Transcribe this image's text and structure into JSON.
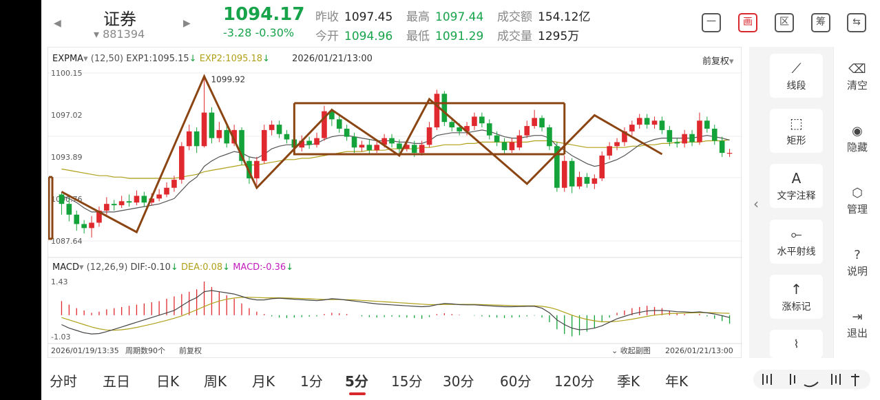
{
  "header": {
    "name": "证券",
    "code": "881394",
    "price": "1094.17",
    "change": "-3.28  -0.30%",
    "quotes": [
      {
        "label": "昨收",
        "value": "1097.45",
        "tone": "normal"
      },
      {
        "label": "今开",
        "value": "1094.96",
        "tone": "green"
      },
      {
        "label": "最高",
        "value": "1097.44",
        "tone": "green"
      },
      {
        "label": "最低",
        "value": "1091.29",
        "tone": "green"
      },
      {
        "label": "成交额",
        "value": "154.12亿",
        "tone": "normal"
      },
      {
        "label": "成交量",
        "value": "1295万",
        "tone": "normal"
      }
    ],
    "buttons": [
      {
        "label": "一",
        "name": "minimize-view-button"
      },
      {
        "label": "画",
        "name": "draw-button"
      },
      {
        "label": "区",
        "name": "range-button"
      },
      {
        "label": "筹",
        "name": "chips-button"
      },
      {
        "label": "⇆",
        "name": "switch-device-button"
      }
    ]
  },
  "chart": {
    "main_indicator": {
      "name": "EXPMA",
      "params": "(12,50)",
      "exp1": "EXP1:1095.15",
      "exp2": "EXP2:1095.18",
      "time": "2026/01/21/13:00"
    },
    "adjust_label": "前复权",
    "y_labels": [
      "1100.15",
      "1097.02",
      "1093.89",
      "1090.76",
      "1087.64"
    ],
    "max_marker": "1099.92",
    "sub_indicator": {
      "name": "MACD",
      "params": "(12,26,9)",
      "dif": "DIF:-0.10",
      "dea": "DEA:0.08",
      "macd": "MACD:-0.36"
    },
    "macd_labels": [
      "1.43",
      "-1.03"
    ],
    "footer": {
      "start_time": "2026/01/19/13:35",
      "period_count": "周期数90个",
      "adjust": "前复权",
      "collapse": "收起副图",
      "end_time": "2026/01/21/13:00"
    },
    "colors": {
      "up": "#e0292e",
      "down": "#14a33a",
      "exp1": "#555555",
      "exp2": "#b0a018",
      "draw": "#8b4513"
    }
  },
  "chart_data": {
    "type": "candlestick",
    "title": "",
    "candles": [
      [
        1091.1,
        1090.4,
        1091.3,
        1089.6
      ],
      [
        1090.4,
        1089.6,
        1090.8,
        1089.1
      ],
      [
        1089.6,
        1088.9,
        1089.9,
        1088.4
      ],
      [
        1088.9,
        1088.6,
        1089.2,
        1088.2
      ],
      [
        1088.6,
        1089.0,
        1089.5,
        1087.9
      ],
      [
        1089.0,
        1089.9,
        1090.2,
        1088.7
      ],
      [
        1089.9,
        1090.4,
        1090.9,
        1089.6
      ],
      [
        1090.4,
        1090.3,
        1090.7,
        1089.9
      ],
      [
        1090.3,
        1090.6,
        1091.0,
        1090.1
      ],
      [
        1090.6,
        1090.5,
        1091.1,
        1090.2
      ],
      [
        1090.5,
        1091.0,
        1091.4,
        1090.3
      ],
      [
        1091.0,
        1090.5,
        1091.3,
        1090.2
      ],
      [
        1090.5,
        1090.8,
        1091.2,
        1090.3
      ],
      [
        1090.8,
        1091.1,
        1091.5,
        1090.6
      ],
      [
        1091.1,
        1091.6,
        1092.0,
        1090.9
      ],
      [
        1091.6,
        1092.2,
        1092.5,
        1091.3
      ],
      [
        1092.2,
        1094.7,
        1095.0,
        1091.9
      ],
      [
        1094.7,
        1095.8,
        1096.3,
        1094.4
      ],
      [
        1095.8,
        1094.7,
        1096.1,
        1094.2
      ],
      [
        1094.7,
        1097.2,
        1099.9,
        1094.6
      ],
      [
        1097.2,
        1095.3,
        1097.6,
        1094.9
      ],
      [
        1095.3,
        1095.9,
        1096.5,
        1095.0
      ],
      [
        1095.9,
        1094.9,
        1096.3,
        1094.6
      ],
      [
        1094.9,
        1095.9,
        1096.3,
        1094.7
      ],
      [
        1095.9,
        1093.6,
        1096.1,
        1093.3
      ],
      [
        1093.6,
        1092.3,
        1093.9,
        1091.9
      ],
      [
        1092.3,
        1093.6,
        1093.9,
        1091.8
      ],
      [
        1093.6,
        1095.9,
        1096.3,
        1093.4
      ],
      [
        1095.9,
        1096.3,
        1096.6,
        1095.5
      ],
      [
        1096.3,
        1095.6,
        1096.6,
        1095.3
      ],
      [
        1095.6,
        1095.2,
        1095.9,
        1094.9
      ],
      [
        1095.2,
        1094.6,
        1095.5,
        1094.2
      ],
      [
        1094.6,
        1095.1,
        1095.5,
        1094.3
      ],
      [
        1095.1,
        1094.8,
        1095.4,
        1094.5
      ],
      [
        1094.8,
        1095.3,
        1095.7,
        1094.6
      ],
      [
        1095.3,
        1097.3,
        1097.7,
        1095.1
      ],
      [
        1097.3,
        1096.7,
        1097.5,
        1096.2
      ],
      [
        1096.7,
        1096.0,
        1097.0,
        1095.7
      ],
      [
        1096.0,
        1095.4,
        1096.3,
        1095.1
      ],
      [
        1095.4,
        1094.6,
        1095.7,
        1094.2
      ],
      [
        1094.6,
        1094.8,
        1095.1,
        1094.3
      ],
      [
        1094.8,
        1094.4,
        1095.2,
        1094.1
      ],
      [
        1094.4,
        1094.8,
        1095.1,
        1094.2
      ],
      [
        1094.8,
        1095.3,
        1095.6,
        1094.6
      ],
      [
        1095.3,
        1094.9,
        1095.6,
        1094.6
      ],
      [
        1094.9,
        1094.5,
        1095.2,
        1094.2
      ],
      [
        1094.5,
        1094.8,
        1095.1,
        1094.3
      ],
      [
        1094.8,
        1094.2,
        1095.1,
        1093.9
      ],
      [
        1094.2,
        1094.8,
        1095.1,
        1094.0
      ],
      [
        1094.8,
        1096.1,
        1096.5,
        1094.6
      ],
      [
        1096.1,
        1098.6,
        1098.9,
        1095.9
      ],
      [
        1098.6,
        1096.5,
        1098.8,
        1096.2
      ],
      [
        1096.5,
        1096.1,
        1096.8,
        1095.8
      ],
      [
        1096.1,
        1095.8,
        1096.4,
        1095.5
      ],
      [
        1095.8,
        1096.2,
        1096.5,
        1095.5
      ],
      [
        1096.2,
        1096.9,
        1097.2,
        1095.9
      ],
      [
        1096.9,
        1096.4,
        1097.2,
        1096.1
      ],
      [
        1096.4,
        1095.5,
        1096.7,
        1095.2
      ],
      [
        1095.5,
        1095.0,
        1095.8,
        1094.7
      ],
      [
        1095.0,
        1094.4,
        1095.3,
        1094.1
      ],
      [
        1094.4,
        1095.0,
        1095.3,
        1094.2
      ],
      [
        1094.6,
        1095.5,
        1095.9,
        1094.4
      ],
      [
        1095.5,
        1096.2,
        1096.6,
        1095.3
      ],
      [
        1096.2,
        1096.8,
        1097.4,
        1096.0
      ],
      [
        1096.8,
        1096.1,
        1097.0,
        1095.8
      ],
      [
        1096.1,
        1094.7,
        1096.3,
        1094.4
      ],
      [
        1094.7,
        1091.6,
        1095.0,
        1091.3
      ],
      [
        1091.6,
        1093.6,
        1094.0,
        1091.3
      ],
      [
        1093.6,
        1091.7,
        1093.8,
        1091.2
      ],
      [
        1091.7,
        1092.4,
        1092.8,
        1091.5
      ],
      [
        1092.4,
        1091.9,
        1092.7,
        1091.6
      ],
      [
        1091.9,
        1092.3,
        1092.6,
        1091.5
      ],
      [
        1092.3,
        1094.0,
        1094.3,
        1092.1
      ],
      [
        1094.0,
        1094.7,
        1095.0,
        1093.7
      ],
      [
        1094.7,
        1095.0,
        1095.3,
        1094.4
      ],
      [
        1095.0,
        1095.8,
        1096.1,
        1094.7
      ],
      [
        1095.8,
        1096.3,
        1096.6,
        1095.5
      ],
      [
        1096.3,
        1096.8,
        1097.1,
        1096.0
      ],
      [
        1096.8,
        1096.3,
        1097.1,
        1096.0
      ],
      [
        1096.3,
        1096.6,
        1096.9,
        1096.0
      ],
      [
        1096.6,
        1095.9,
        1096.9,
        1095.6
      ],
      [
        1095.9,
        1095.0,
        1096.2,
        1094.7
      ],
      [
        1095.0,
        1094.9,
        1095.3,
        1094.6
      ],
      [
        1094.9,
        1095.6,
        1095.9,
        1094.6
      ],
      [
        1095.6,
        1095.0,
        1095.9,
        1094.7
      ],
      [
        1095.0,
        1096.6,
        1097.2,
        1094.8
      ],
      [
        1096.6,
        1096.0,
        1096.9,
        1095.7
      ],
      [
        1096.0,
        1095.1,
        1096.3,
        1094.8
      ],
      [
        1095.1,
        1094.2,
        1095.4,
        1093.9
      ],
      [
        1094.2,
        1094.2,
        1094.5,
        1093.9
      ]
    ],
    "macd_hist": [
      0.6,
      0.45,
      0.3,
      0.2,
      0.1,
      0.15,
      0.25,
      0.3,
      0.35,
      0.4,
      0.45,
      0.5,
      0.55,
      0.6,
      0.7,
      0.8,
      0.9,
      1.0,
      1.1,
      1.43,
      1.2,
      1.0,
      0.85,
      0.7,
      0.5,
      0.3,
      0.15,
      0.05,
      -0.05,
      -0.1,
      -0.12,
      -0.1,
      -0.08,
      -0.06,
      -0.05,
      0.05,
      0.1,
      0.08,
      0.05,
      0.0,
      -0.05,
      -0.08,
      -0.1,
      -0.08,
      -0.06,
      -0.08,
      -0.1,
      -0.12,
      -0.15,
      -0.08,
      0.05,
      0.08,
      0.05,
      0.02,
      0.0,
      -0.02,
      -0.05,
      -0.08,
      -0.1,
      -0.12,
      -0.1,
      -0.08,
      -0.05,
      -0.02,
      -0.1,
      -0.3,
      -0.6,
      -0.8,
      -0.9,
      -0.85,
      -0.7,
      -0.55,
      -0.3,
      -0.1,
      0.1,
      0.2,
      0.3,
      0.35,
      0.4,
      0.35,
      0.3,
      0.2,
      0.1,
      0.05,
      0.0,
      0.05,
      -0.05,
      -0.15,
      -0.25,
      -0.36
    ],
    "dif": [
      -0.4,
      -0.55,
      -0.65,
      -0.75,
      -0.8,
      -0.78,
      -0.7,
      -0.6,
      -0.5,
      -0.4,
      -0.3,
      -0.2,
      -0.1,
      0.0,
      0.1,
      0.2,
      0.4,
      0.6,
      0.75,
      1.0,
      1.05,
      1.0,
      0.95,
      0.9,
      0.8,
      0.7,
      0.65,
      0.65,
      0.7,
      0.72,
      0.7,
      0.68,
      0.66,
      0.64,
      0.62,
      0.65,
      0.7,
      0.68,
      0.64,
      0.6,
      0.56,
      0.52,
      0.48,
      0.46,
      0.44,
      0.42,
      0.4,
      0.38,
      0.36,
      0.38,
      0.45,
      0.5,
      0.48,
      0.45,
      0.44,
      0.44,
      0.42,
      0.4,
      0.38,
      0.36,
      0.36,
      0.37,
      0.38,
      0.38,
      0.3,
      0.1,
      -0.2,
      -0.4,
      -0.55,
      -0.62,
      -0.6,
      -0.55,
      -0.45,
      -0.3,
      -0.15,
      -0.05,
      0.05,
      0.12,
      0.18,
      0.2,
      0.2,
      0.18,
      0.15,
      0.14,
      0.12,
      0.14,
      0.1,
      0.05,
      -0.02,
      -0.1
    ],
    "dea": [
      -0.1,
      -0.2,
      -0.3,
      -0.4,
      -0.5,
      -0.58,
      -0.63,
      -0.64,
      -0.62,
      -0.58,
      -0.52,
      -0.45,
      -0.38,
      -0.3,
      -0.22,
      -0.13,
      -0.03,
      0.1,
      0.23,
      0.37,
      0.5,
      0.6,
      0.68,
      0.73,
      0.76,
      0.76,
      0.75,
      0.74,
      0.74,
      0.74,
      0.73,
      0.72,
      0.71,
      0.7,
      0.68,
      0.67,
      0.67,
      0.67,
      0.66,
      0.65,
      0.63,
      0.61,
      0.59,
      0.57,
      0.55,
      0.53,
      0.51,
      0.49,
      0.47,
      0.45,
      0.45,
      0.46,
      0.46,
      0.46,
      0.46,
      0.46,
      0.45,
      0.44,
      0.43,
      0.42,
      0.41,
      0.4,
      0.4,
      0.4,
      0.38,
      0.33,
      0.24,
      0.12,
      0.0,
      -0.1,
      -0.18,
      -0.24,
      -0.28,
      -0.28,
      -0.26,
      -0.22,
      -0.17,
      -0.11,
      -0.05,
      0.0,
      0.04,
      0.07,
      0.08,
      0.09,
      0.1,
      0.11,
      0.11,
      0.1,
      0.09,
      0.08
    ],
    "exp1": [
      1091.0,
      1090.8,
      1090.5,
      1090.1,
      1089.8,
      1089.8,
      1089.8,
      1089.8,
      1089.9,
      1090.0,
      1090.1,
      1090.2,
      1090.3,
      1090.4,
      1090.6,
      1090.8,
      1091.4,
      1092.0,
      1092.4,
      1093.2,
      1093.6,
      1093.9,
      1094.1,
      1094.3,
      1094.2,
      1093.9,
      1093.8,
      1094.1,
      1094.5,
      1094.7,
      1094.8,
      1094.8,
      1094.8,
      1094.8,
      1094.9,
      1095.2,
      1095.4,
      1095.5,
      1095.5,
      1095.4,
      1095.3,
      1095.2,
      1095.1,
      1095.1,
      1095.1,
      1095.0,
      1095.0,
      1094.9,
      1094.9,
      1095.1,
      1095.5,
      1095.6,
      1095.7,
      1095.7,
      1095.7,
      1095.8,
      1095.9,
      1095.8,
      1095.6,
      1095.4,
      1095.3,
      1095.3,
      1095.4,
      1095.5,
      1095.5,
      1095.3,
      1094.7,
      1094.4,
      1094.0,
      1093.7,
      1093.4,
      1093.2,
      1093.3,
      1093.5,
      1093.7,
      1094.0,
      1094.4,
      1094.8,
      1095.0,
      1095.2,
      1095.3,
      1095.3,
      1095.3,
      1095.3,
      1095.3,
      1095.4,
      1095.5,
      1095.4,
      1095.3,
      1095.15
    ],
    "exp2": [
      1093.0,
      1092.9,
      1092.8,
      1092.7,
      1092.6,
      1092.5,
      1092.5,
      1092.4,
      1092.4,
      1092.3,
      1092.3,
      1092.3,
      1092.3,
      1092.3,
      1092.3,
      1092.3,
      1092.4,
      1092.5,
      1092.6,
      1092.8,
      1092.9,
      1093.0,
      1093.1,
      1093.2,
      1093.3,
      1093.3,
      1093.3,
      1093.4,
      1093.5,
      1093.6,
      1093.7,
      1093.7,
      1093.8,
      1093.8,
      1093.9,
      1094.0,
      1094.1,
      1094.2,
      1094.3,
      1094.3,
      1094.3,
      1094.4,
      1094.4,
      1094.4,
      1094.5,
      1094.5,
      1094.5,
      1094.5,
      1094.6,
      1094.6,
      1094.7,
      1094.8,
      1094.8,
      1094.8,
      1094.9,
      1094.9,
      1095.0,
      1095.0,
      1095.0,
      1095.0,
      1095.0,
      1095.0,
      1095.0,
      1095.1,
      1095.1,
      1095.1,
      1095.0,
      1094.9,
      1094.8,
      1094.7,
      1094.6,
      1094.6,
      1094.6,
      1094.6,
      1094.6,
      1094.6,
      1094.7,
      1094.7,
      1094.8,
      1094.8,
      1094.9,
      1094.9,
      1095.0,
      1095.0,
      1095.0,
      1095.0,
      1095.1,
      1095.1,
      1095.1,
      1095.18
    ],
    "y_range": [
      1087.64,
      1100.15
    ],
    "macd_range": [
      -1.03,
      1.43
    ],
    "x_start": "2026/01/19/13:35",
    "x_end": "2026/01/21/13:00",
    "drawings": {
      "zigzag": [
        [
          0,
          1091.3
        ],
        [
          10,
          1088.3
        ],
        [
          19,
          1099.9
        ],
        [
          26,
          1091.6
        ],
        [
          36,
          1097.4
        ],
        [
          45,
          1094.0
        ],
        [
          49,
          1098.2
        ],
        [
          62,
          1091.9
        ],
        [
          71,
          1097.0
        ],
        [
          80,
          1094.1
        ]
      ],
      "rectangles": [
        {
          "x1": 31,
          "x2": 67,
          "y_top": 1097.9,
          "y_bottom": 1094.1
        },
        {
          "x1": 0,
          "x2": 0.6,
          "y_top": 1092.4,
          "y_bottom": 1087.8
        }
      ]
    }
  },
  "tools": [
    {
      "label": "线段",
      "icon": "⟋",
      "name": "line-segment-tool"
    },
    {
      "label": "矩形",
      "icon": "⬚",
      "name": "rectangle-tool"
    },
    {
      "label": "文字注释",
      "icon": "A",
      "name": "text-note-tool"
    },
    {
      "label": "水平射线",
      "icon": "⟜",
      "name": "horizontal-ray-tool"
    },
    {
      "label": "涨标记",
      "icon": "↑",
      "name": "rise-mark-tool"
    }
  ],
  "side_actions": [
    {
      "label": "清空",
      "icon": "⌫",
      "name": "clear-button"
    },
    {
      "label": "隐藏",
      "icon": "◉",
      "name": "hide-button"
    },
    {
      "label": "管理",
      "icon": "⬡",
      "name": "manage-button"
    },
    {
      "label": "说明",
      "icon": "?",
      "name": "help-button"
    },
    {
      "label": "退出",
      "icon": "⇥",
      "name": "exit-button"
    }
  ],
  "periods": [
    "分时",
    "五日",
    "日K",
    "周K",
    "月K",
    "1分",
    "5分",
    "15分",
    "30分",
    "60分",
    "120分",
    "季K",
    "年K"
  ],
  "active_period": "5分"
}
